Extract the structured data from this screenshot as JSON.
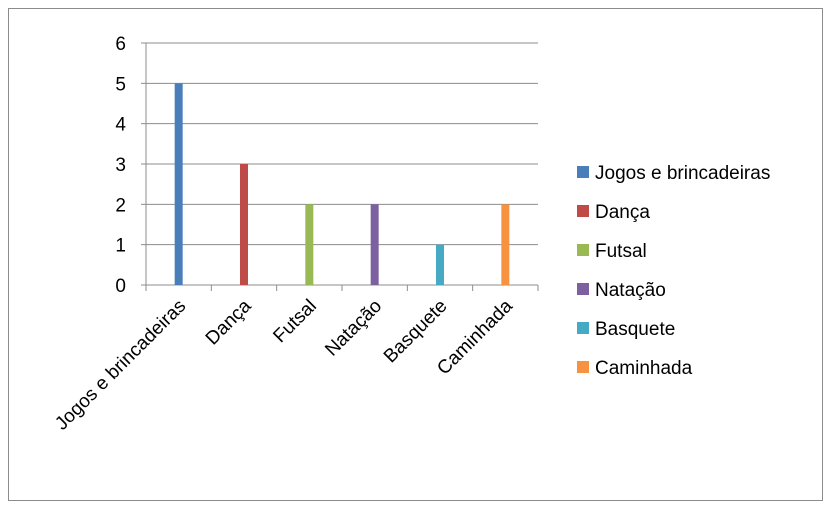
{
  "chart_data": {
    "type": "bar",
    "title": "",
    "xlabel": "",
    "ylabel": "",
    "categories": [
      "Jogos e brincadeiras",
      "Dança",
      "Futsal",
      "Natação",
      "Basquete",
      "Caminhada"
    ],
    "ylim": [
      0,
      6
    ],
    "yticks": [
      "0",
      "1",
      "2",
      "3",
      "4",
      "5",
      "6"
    ],
    "grid": true,
    "legend": "right",
    "series": [
      {
        "name": "Jogos e brincadeiras",
        "color": "#4A7EBB",
        "values": [
          5,
          null,
          null,
          null,
          null,
          null
        ]
      },
      {
        "name": "Dança",
        "color": "#BE4B48",
        "values": [
          null,
          3,
          null,
          null,
          null,
          null
        ]
      },
      {
        "name": "Futsal",
        "color": "#98B954",
        "values": [
          null,
          null,
          2,
          null,
          null,
          null
        ]
      },
      {
        "name": "Natação",
        "color": "#7D60A0",
        "values": [
          null,
          null,
          null,
          2,
          null,
          null
        ]
      },
      {
        "name": "Basquete",
        "color": "#46AAC5",
        "values": [
          null,
          null,
          null,
          null,
          1,
          null
        ]
      },
      {
        "name": "Caminhada",
        "color": "#F69240",
        "values": [
          null,
          null,
          null,
          null,
          null,
          2
        ]
      }
    ]
  }
}
